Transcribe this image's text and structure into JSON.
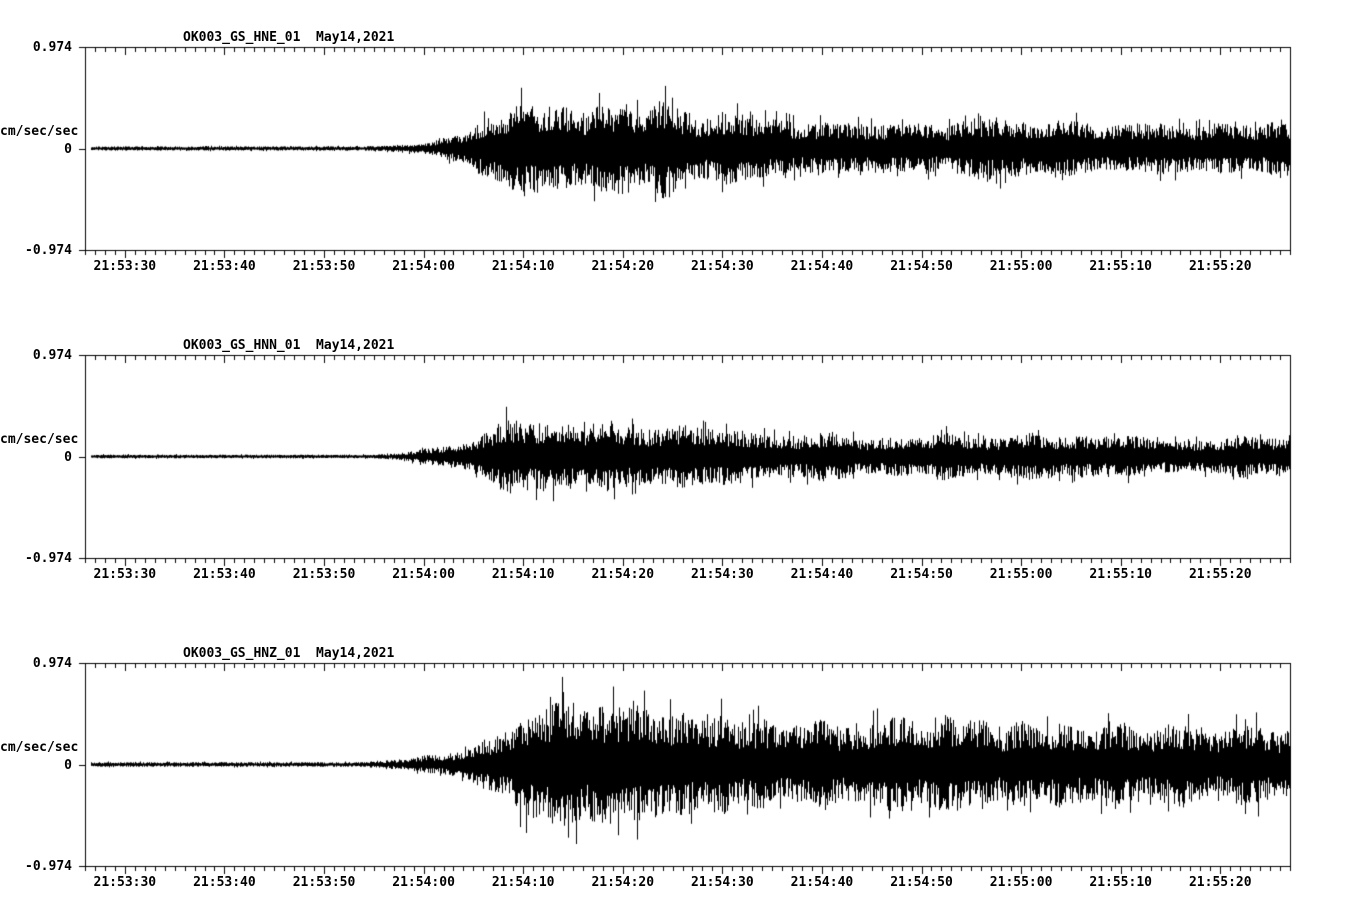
{
  "page": {
    "background": "#ffffff",
    "trace_color": "#000000"
  },
  "chart_data": [
    {
      "type": "line",
      "title": "OK003_GS_HNE_01  May14,2021",
      "ylabel": "cm/sec/sec",
      "ylim": [
        -0.974,
        0.974
      ],
      "ytick_labels": [
        "0.974",
        "0",
        "-0.974"
      ],
      "x_tick_labels": [
        "21:53:30",
        "21:53:40",
        "21:53:50",
        "21:54:00",
        "21:54:10",
        "21:54:20",
        "21:54:30",
        "21:54:40",
        "21:54:50",
        "21:55:00",
        "21:55:10",
        "21:55:20"
      ],
      "x_first_tick_s": 4,
      "x_major_step_s": 10,
      "x_minor_step_s": 1,
      "duration_s": 121,
      "grid": false,
      "legend": false,
      "seed": 101,
      "envelope": [
        [
          0,
          0.028
        ],
        [
          28,
          0.028
        ],
        [
          31,
          0.04
        ],
        [
          34,
          0.07
        ],
        [
          36,
          0.12
        ],
        [
          38,
          0.22
        ],
        [
          40,
          0.38
        ],
        [
          42,
          0.5
        ],
        [
          46,
          0.55
        ],
        [
          50,
          0.52
        ],
        [
          54,
          0.6
        ],
        [
          58,
          0.55
        ],
        [
          62,
          0.42
        ],
        [
          66,
          0.4
        ],
        [
          70,
          0.32
        ],
        [
          76,
          0.28
        ],
        [
          82,
          0.3
        ],
        [
          88,
          0.33
        ],
        [
          94,
          0.42
        ],
        [
          98,
          0.36
        ],
        [
          104,
          0.3
        ],
        [
          110,
          0.3
        ],
        [
          116,
          0.32
        ],
        [
          121,
          0.33
        ]
      ]
    },
    {
      "type": "line",
      "title": "OK003_GS_HNN_01  May14,2021",
      "ylabel": "cm/sec/sec",
      "ylim": [
        -0.974,
        0.974
      ],
      "ytick_labels": [
        "0.974",
        "0",
        "-0.974"
      ],
      "x_tick_labels": [
        "21:53:30",
        "21:53:40",
        "21:53:50",
        "21:54:00",
        "21:54:10",
        "21:54:20",
        "21:54:30",
        "21:54:40",
        "21:54:50",
        "21:55:00",
        "21:55:10",
        "21:55:20"
      ],
      "x_first_tick_s": 4,
      "x_major_step_s": 10,
      "x_minor_step_s": 1,
      "duration_s": 121,
      "grid": false,
      "legend": false,
      "seed": 202,
      "envelope": [
        [
          0,
          0.024
        ],
        [
          29,
          0.024
        ],
        [
          32,
          0.05
        ],
        [
          35,
          0.12
        ],
        [
          38,
          0.22
        ],
        [
          41,
          0.4
        ],
        [
          43,
          0.5
        ],
        [
          45,
          0.45
        ],
        [
          48,
          0.38
        ],
        [
          52,
          0.42
        ],
        [
          56,
          0.45
        ],
        [
          60,
          0.38
        ],
        [
          64,
          0.35
        ],
        [
          68,
          0.3
        ],
        [
          74,
          0.28
        ],
        [
          80,
          0.26
        ],
        [
          86,
          0.3
        ],
        [
          92,
          0.28
        ],
        [
          96,
          0.32
        ],
        [
          102,
          0.26
        ],
        [
          108,
          0.24
        ],
        [
          114,
          0.26
        ],
        [
          121,
          0.28
        ]
      ]
    },
    {
      "type": "line",
      "title": "OK003_GS_HNZ_01  May14,2021",
      "ylabel": "cm/sec/sec",
      "ylim": [
        -0.974,
        0.974
      ],
      "ytick_labels": [
        "0.974",
        "0",
        "-0.974"
      ],
      "x_tick_labels": [
        "21:53:30",
        "21:53:40",
        "21:53:50",
        "21:54:00",
        "21:54:10",
        "21:54:20",
        "21:54:30",
        "21:54:40",
        "21:54:50",
        "21:55:00",
        "21:55:10",
        "21:55:20"
      ],
      "x_first_tick_s": 4,
      "x_major_step_s": 10,
      "x_minor_step_s": 1,
      "duration_s": 121,
      "grid": false,
      "legend": false,
      "seed": 303,
      "envelope": [
        [
          0,
          0.03
        ],
        [
          27,
          0.03
        ],
        [
          30,
          0.05
        ],
        [
          34,
          0.1
        ],
        [
          38,
          0.2
        ],
        [
          42,
          0.45
        ],
        [
          45,
          0.7
        ],
        [
          48,
          0.85
        ],
        [
          52,
          0.75
        ],
        [
          56,
          0.9
        ],
        [
          60,
          0.7
        ],
        [
          64,
          0.6
        ],
        [
          70,
          0.55
        ],
        [
          76,
          0.52
        ],
        [
          82,
          0.55
        ],
        [
          87,
          0.62
        ],
        [
          92,
          0.55
        ],
        [
          97,
          0.58
        ],
        [
          102,
          0.5
        ],
        [
          108,
          0.48
        ],
        [
          114,
          0.5
        ],
        [
          121,
          0.5
        ]
      ]
    }
  ]
}
